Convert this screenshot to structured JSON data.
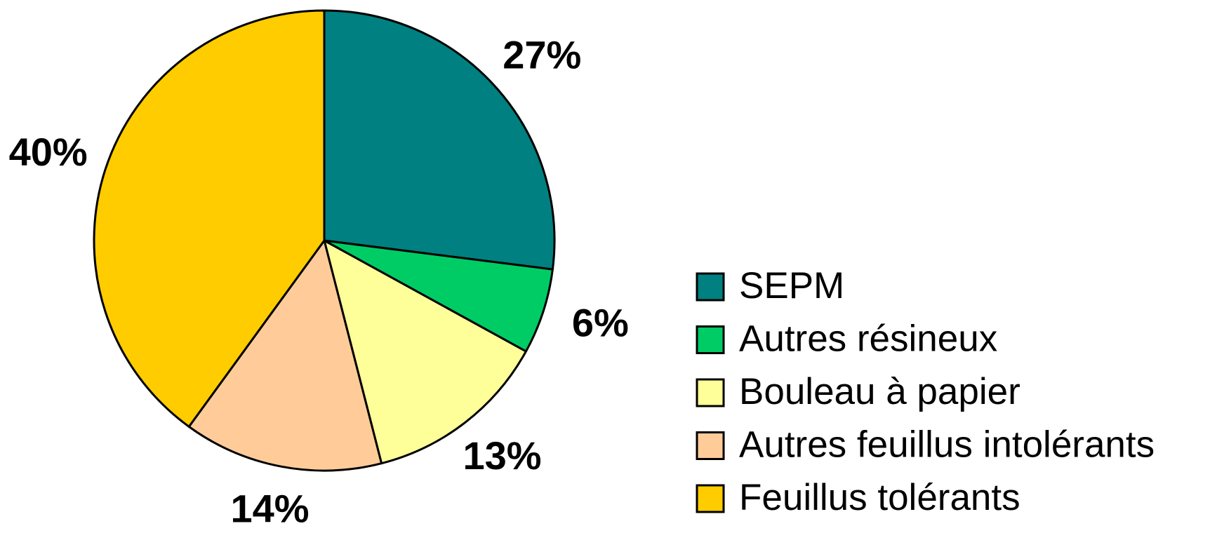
{
  "chart_data": {
    "type": "pie",
    "categories": [
      "SEPM",
      "Autres résineux",
      "Bouleau à papier",
      "Autres feuillus intolérants",
      "Feuillus tolérants"
    ],
    "values": [
      27,
      6,
      13,
      14,
      40
    ],
    "value_labels": [
      "27%",
      "6%",
      "13%",
      "14%",
      "40%"
    ],
    "colors": [
      "#008080",
      "#00cc66",
      "#ffff99",
      "#ffcc99",
      "#ffcc00"
    ],
    "legend": "right"
  }
}
